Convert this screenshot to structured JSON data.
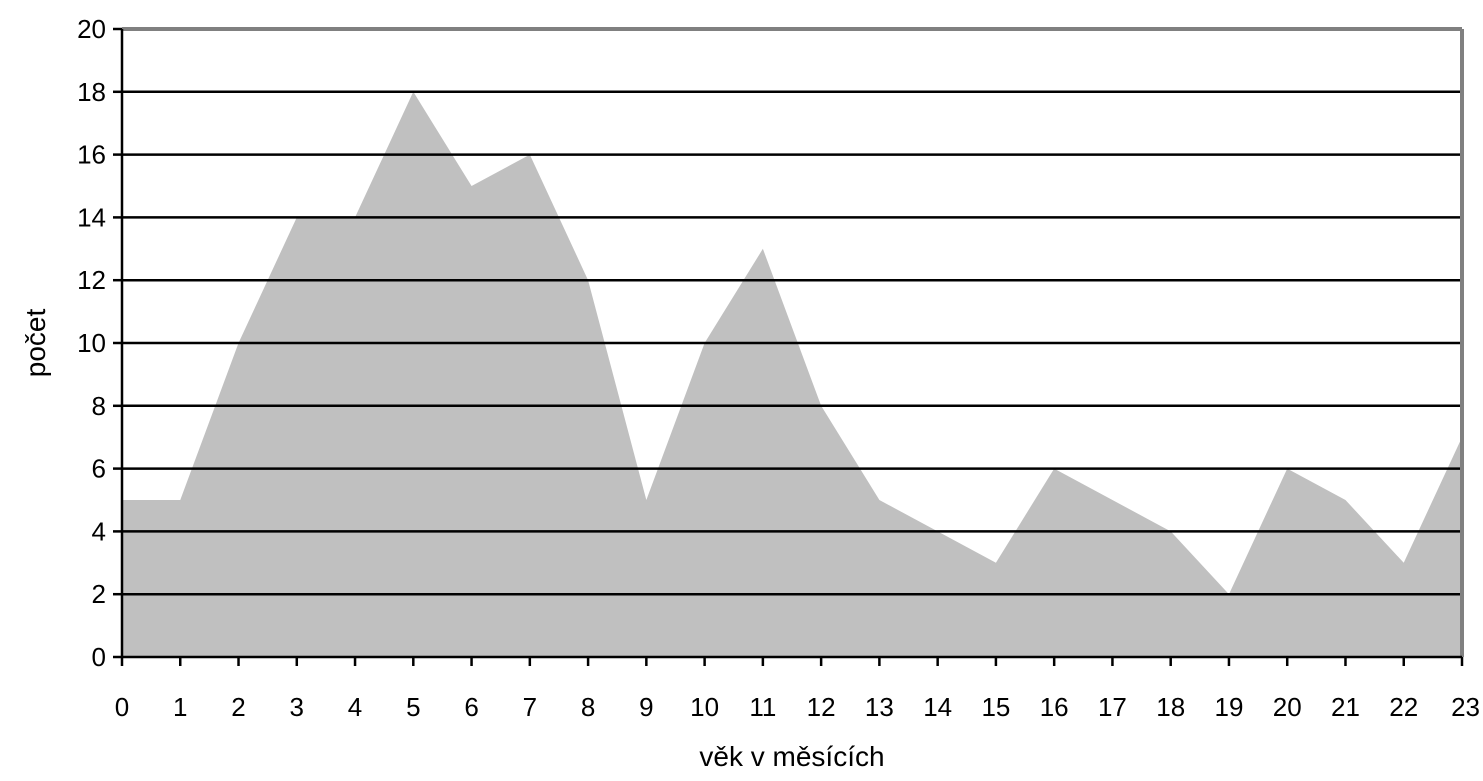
{
  "chart_data": {
    "type": "area",
    "title": "",
    "xlabel": "věk v měsících",
    "ylabel": "počet",
    "x": [
      0,
      1,
      2,
      3,
      4,
      5,
      6,
      7,
      8,
      9,
      10,
      11,
      12,
      13,
      14,
      15,
      16,
      17,
      18,
      19,
      20,
      21,
      22,
      23
    ],
    "x_tick_labels": [
      "0",
      "1",
      "2",
      "3",
      "4",
      "5",
      "6",
      "7",
      "8",
      "9",
      "10",
      "11",
      "12",
      "13",
      "14",
      "15",
      "16",
      "17",
      "18",
      "19",
      "20",
      "21",
      "22",
      "23"
    ],
    "y_tick_labels": [
      "0",
      "2",
      "4",
      "6",
      "8",
      "10",
      "12",
      "14",
      "16",
      "18",
      "20"
    ],
    "series": [
      {
        "values": [
          5,
          5,
          10,
          14,
          14,
          18,
          15,
          16,
          12,
          5,
          10,
          13,
          8,
          5,
          4,
          3,
          6,
          5,
          4,
          2,
          6,
          5,
          3,
          7
        ]
      }
    ],
    "xlim": [
      0,
      23
    ],
    "ylim": [
      0,
      20
    ],
    "grid": true,
    "legend": "none",
    "colors": {
      "area_fill": "#c0c0c0",
      "gridline": "#000000",
      "axis": "#000000",
      "frame": "#808080"
    }
  }
}
